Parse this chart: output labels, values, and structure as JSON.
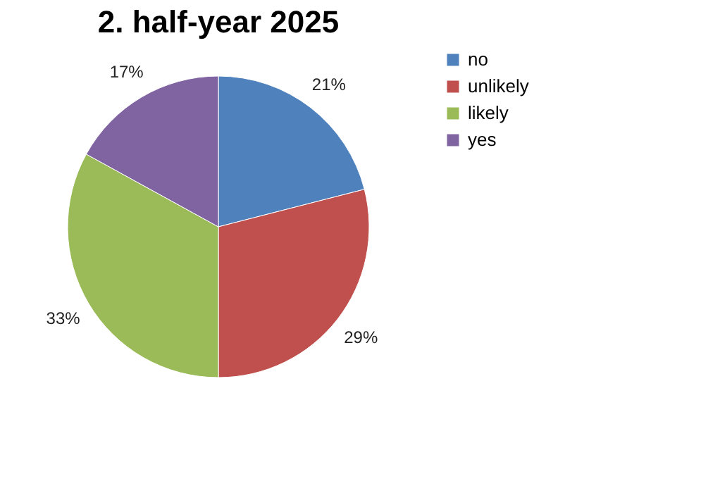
{
  "chart_data": {
    "type": "pie",
    "title": "2. half-year 2025",
    "categories": [
      "no",
      "unlikely",
      "likely",
      "yes"
    ],
    "values": [
      21,
      29,
      33,
      17
    ],
    "value_labels": [
      "21%",
      "29%",
      "33%",
      "17%"
    ],
    "colors": [
      "#4f81bd",
      "#c0504d",
      "#9bbb59",
      "#8064a2"
    ],
    "legend": "right"
  }
}
